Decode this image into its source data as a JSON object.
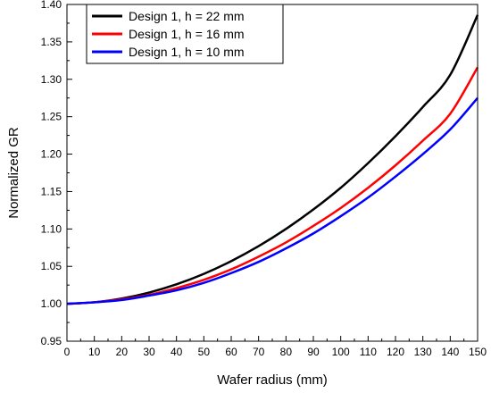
{
  "chart_data": {
    "type": "line",
    "title": "",
    "xlabel": "Wafer radius (mm)",
    "ylabel": "Normalized GR",
    "xlim": [
      0,
      150
    ],
    "ylim": [
      0.95,
      1.4
    ],
    "xticks": [
      0,
      10,
      20,
      30,
      40,
      50,
      60,
      70,
      80,
      90,
      100,
      110,
      120,
      130,
      140,
      150
    ],
    "yticks": [
      "0.95",
      "1.00",
      "1.05",
      "1.10",
      "1.15",
      "1.20",
      "1.25",
      "1.30",
      "1.35",
      "1.40"
    ],
    "grid": false,
    "legend_position": "top-left",
    "x": [
      0,
      10,
      20,
      30,
      40,
      50,
      60,
      70,
      80,
      90,
      100,
      110,
      120,
      130,
      140,
      150
    ],
    "series": [
      {
        "name": "Design 1, h = 22 mm",
        "color": "#000000",
        "values": [
          1.0,
          1.002,
          1.007,
          1.015,
          1.026,
          1.04,
          1.057,
          1.077,
          1.1,
          1.126,
          1.155,
          1.188,
          1.224,
          1.263,
          1.306,
          1.386
        ]
      },
      {
        "name": "Design 1, h = 16 mm",
        "color": "#ff0000",
        "values": [
          1.0,
          1.002,
          1.006,
          1.012,
          1.021,
          1.032,
          1.046,
          1.063,
          1.082,
          1.104,
          1.128,
          1.155,
          1.185,
          1.218,
          1.254,
          1.316
        ]
      },
      {
        "name": "Design 1, h = 10 mm",
        "color": "#0000ff",
        "values": [
          1.0,
          1.002,
          1.005,
          1.011,
          1.018,
          1.028,
          1.041,
          1.056,
          1.074,
          1.094,
          1.117,
          1.142,
          1.17,
          1.2,
          1.233,
          1.275
        ]
      }
    ]
  }
}
